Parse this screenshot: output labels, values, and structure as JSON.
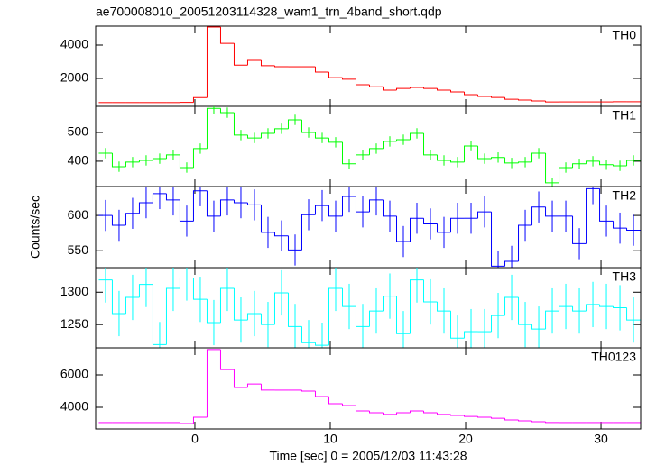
{
  "chart_data": {
    "type": "step",
    "title": "ae700008010_20051203114328_wam1_trn_4band_short.qdp",
    "xlabel": "Time [sec] 0 = 2005/12/03 11:43:28",
    "ylabel": "Counts/sec",
    "xlim": [
      -7.33,
      32.93
    ],
    "xticks": [
      0,
      10,
      20,
      30
    ],
    "bins": [
      -7.1,
      -6.1,
      -5.1,
      -4.1,
      -3.1,
      -2.1,
      -1.1,
      -0.1,
      0.9,
      1.9,
      2.9,
      3.9,
      4.9,
      5.9,
      6.9,
      7.9,
      8.9,
      9.9,
      10.9,
      11.9,
      12.9,
      13.9,
      14.9,
      15.9,
      16.9,
      17.9,
      18.9,
      19.9,
      20.9,
      21.9,
      22.9,
      23.9,
      24.9,
      25.9,
      26.9,
      27.9,
      28.9,
      29.9,
      30.9,
      31.9,
      32.9
    ],
    "panels": [
      {
        "name": "TH0",
        "color": "#ff0000",
        "ylim": [
          324,
          5135
        ],
        "yticks": [
          2000,
          4000
        ],
        "values": [
          550,
          550,
          550,
          550,
          550,
          550,
          560,
          850,
          5080,
          4100,
          2800,
          3080,
          2760,
          2700,
          2700,
          2700,
          2380,
          2050,
          1950,
          1620,
          1500,
          1300,
          1400,
          1460,
          1400,
          1300,
          1190,
          1030,
          920,
          860,
          750,
          700,
          650,
          590,
          590,
          590,
          590,
          590,
          600,
          600
        ]
      },
      {
        "name": "TH1",
        "color": "#00ff00",
        "ylim": [
          312,
          591
        ],
        "yticks": [
          400,
          500
        ],
        "error": 18,
        "values": [
          428,
          381,
          397,
          403,
          409,
          422,
          378,
          444,
          584,
          569,
          491,
          481,
          497,
          513,
          544,
          500,
          481,
          466,
          391,
          422,
          444,
          469,
          475,
          497,
          422,
          403,
          397,
          453,
          409,
          413,
          394,
          397,
          428,
          325,
          378,
          391,
          400,
          388,
          384,
          403
        ]
      },
      {
        "name": "TH2",
        "color": "#0000ff",
        "ylim": [
          526,
          641
        ],
        "yticks": [
          550,
          600
        ],
        "error": 22,
        "values": [
          600,
          586,
          603,
          618,
          631,
          622,
          592,
          635,
          599,
          622,
          618,
          615,
          576,
          571,
          551,
          601,
          614,
          599,
          627,
          605,
          622,
          599,
          563,
          596,
          588,
          576,
          596,
          596,
          605,
          528,
          535,
          586,
          612,
          599,
          599,
          560,
          638,
          592,
          582,
          579
        ]
      },
      {
        "name": "TH3",
        "color": "#00ffff",
        "ylim": [
          1214,
          1338
        ],
        "yticks": [
          1250,
          1300
        ],
        "error": 35,
        "values": [
          1319,
          1267,
          1292,
          1312,
          1219,
          1306,
          1322,
          1289,
          1253,
          1306,
          1257,
          1267,
          1250,
          1299,
          1247,
          1222,
          1218,
          1306,
          1278,
          1247,
          1271,
          1294,
          1236,
          1319,
          1285,
          1271,
          1229,
          1239,
          1239,
          1264,
          1292,
          1250,
          1243,
          1271,
          1278,
          1271,
          1281,
          1278,
          1276,
          1257
        ]
      },
      {
        "name": "TH0123",
        "color": "#ff00ff",
        "ylim": [
          2667,
          7667
        ],
        "yticks": [
          4000,
          6000
        ],
        "values": [
          3060,
          3060,
          3060,
          3060,
          3060,
          3060,
          3000,
          3390,
          7560,
          6330,
          5220,
          5440,
          5060,
          5060,
          5060,
          5000,
          4670,
          4220,
          4110,
          3780,
          3670,
          3560,
          3670,
          3780,
          3670,
          3560,
          3500,
          3440,
          3390,
          3330,
          3220,
          3170,
          3110,
          3060,
          3060,
          3060,
          3060,
          3060,
          3060,
          3060
        ]
      }
    ]
  }
}
